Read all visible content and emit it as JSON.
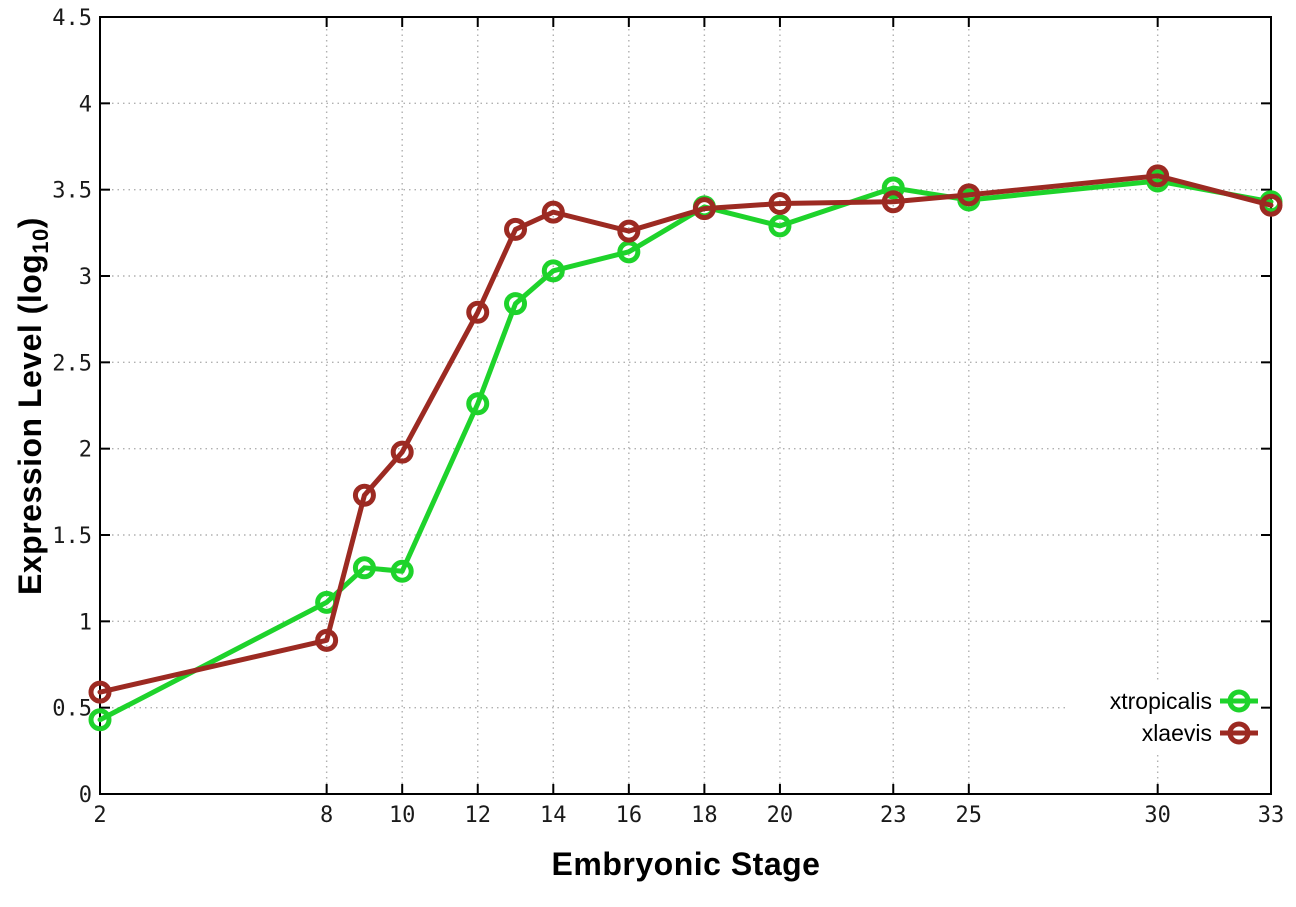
{
  "figure": {
    "background": "#ffffff",
    "x_axis_title": "Embryonic Stage",
    "y_axis_title_pre": "Expression Level (log",
    "y_axis_title_sub": "10",
    "y_axis_title_post": ")"
  },
  "colors": {
    "axis": "#000000",
    "grid": "#b0b0b0",
    "tick_text": "#1a1a1a",
    "xtropicalis": "#1ed32b",
    "xlaevis": "#9c2a22"
  },
  "chart_data": {
    "type": "line",
    "title": "",
    "xlabel": "Embryonic Stage",
    "ylabel": "Expression Level (log10)",
    "xlim": [
      2,
      33
    ],
    "ylim": [
      0,
      4.5
    ],
    "grid": true,
    "marker": "open-circle",
    "legend_position": "bottom-right",
    "x": [
      2,
      8,
      9,
      10,
      12,
      13,
      14,
      16,
      18,
      20,
      23,
      25,
      30,
      33
    ],
    "series": [
      {
        "name": "xtropicalis",
        "color": "#1ed32b",
        "values": [
          0.43,
          1.11,
          1.31,
          1.29,
          2.26,
          2.84,
          3.03,
          3.14,
          3.4,
          3.29,
          3.51,
          3.44,
          3.55,
          3.43
        ]
      },
      {
        "name": "xlaevis",
        "color": "#9c2a22",
        "values": [
          0.59,
          0.89,
          1.73,
          1.98,
          2.79,
          3.27,
          3.37,
          3.26,
          3.39,
          3.42,
          3.43,
          3.47,
          3.58,
          3.41
        ]
      }
    ],
    "x_ticks": [
      {
        "value": 2,
        "label": "2"
      },
      {
        "value": 8,
        "label": "8"
      },
      {
        "value": 10,
        "label": "10"
      },
      {
        "value": 12,
        "label": "12"
      },
      {
        "value": 14,
        "label": "14"
      },
      {
        "value": 16,
        "label": "16"
      },
      {
        "value": 18,
        "label": "18"
      },
      {
        "value": 20,
        "label": "20"
      },
      {
        "value": 23,
        "label": "23"
      },
      {
        "value": 25,
        "label": "25"
      },
      {
        "value": 30,
        "label": "30"
      },
      {
        "value": 33,
        "label": "33"
      }
    ],
    "y_ticks": [
      {
        "value": 0,
        "label": "0"
      },
      {
        "value": 0.5,
        "label": "0.5"
      },
      {
        "value": 1,
        "label": "1"
      },
      {
        "value": 1.5,
        "label": "1.5"
      },
      {
        "value": 2,
        "label": "2"
      },
      {
        "value": 2.5,
        "label": "2.5"
      },
      {
        "value": 3,
        "label": "3"
      },
      {
        "value": 3.5,
        "label": "3.5"
      },
      {
        "value": 4,
        "label": "4"
      },
      {
        "value": 4.5,
        "label": "4.5"
      }
    ]
  }
}
